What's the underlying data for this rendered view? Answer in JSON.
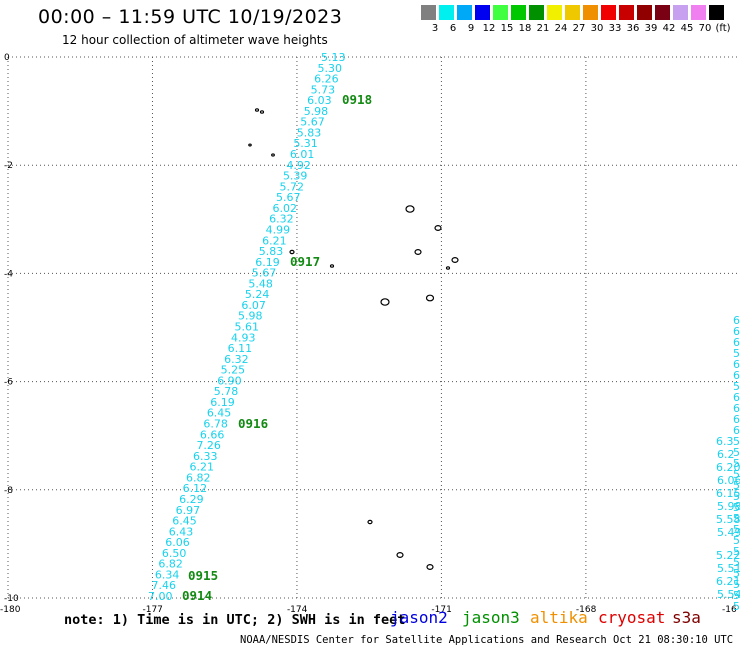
{
  "header": {
    "title": "00:00 – 11:59 UTC 10/19/2023",
    "subtitle": "12 hour collection of altimeter wave heights"
  },
  "legend": {
    "colors": [
      "#808080",
      "#00f0f0",
      "#00a8f8",
      "#0000f0",
      "#40ff40",
      "#00c800",
      "#009000",
      "#f0f000",
      "#f0c800",
      "#f09000",
      "#f00000",
      "#c80000",
      "#900000",
      "#7a0014",
      "#c8a0f0",
      "#f080f0",
      "#000000"
    ],
    "labels": [
      "3",
      "6",
      "9",
      "12",
      "15",
      "18",
      "21",
      "24",
      "27",
      "30",
      "33",
      "36",
      "39",
      "42",
      "45",
      "70",
      "(ft)"
    ]
  },
  "axes": {
    "x_ticks": [
      "-180",
      "-177",
      "-174",
      "-171",
      "-168",
      "-16"
    ],
    "y_ticks": [
      "0",
      "-2",
      "-4",
      "-6",
      "-8",
      "-10"
    ],
    "x_range": [
      -180,
      -164.8
    ],
    "y_range": [
      -10,
      0
    ]
  },
  "tracks": {
    "main_values": [
      "5.13",
      "5.30",
      "6.26",
      "5.73",
      "6.03",
      "5.98",
      "5.67",
      "5.83",
      "5.31",
      "6.01",
      "4.92",
      "5.39",
      "5.72",
      "5.67",
      "6.02",
      "6.32",
      "4.99",
      "6.21",
      "5.83",
      "6.19",
      "5.67",
      "5.48",
      "5.24",
      "6.07",
      "5.98",
      "5.61",
      "4.93",
      "6.11",
      "6.32",
      "5.25",
      "6.90",
      "5.78",
      "6.19",
      "6.45",
      "6.78",
      "6.66",
      "7.26",
      "6.33",
      "6.21",
      "6.82",
      "6.12",
      "6.29",
      "6.97",
      "6.45",
      "6.43",
      "6.06",
      "6.50",
      "6.82",
      "6.34",
      "7.46",
      "7.00"
    ],
    "right_values": [
      "6",
      "6",
      "6",
      "5",
      "6",
      "6",
      "5",
      "6",
      "6",
      "6",
      "6",
      "5",
      "5",
      "5",
      "5",
      "5",
      "5",
      "5",
      "5",
      "5",
      "5",
      "5",
      "5",
      "5",
      "5",
      "5",
      "5"
    ],
    "right_values_far": [
      "6.3",
      "6.2",
      "6.20",
      "6.06",
      "6.15",
      "5.98",
      "5.58",
      "5.49",
      "5.22",
      "5.51",
      "6.21",
      "5.54"
    ]
  },
  "passes": [
    {
      "label": "0918"
    },
    {
      "label": "0917"
    },
    {
      "label": "0916"
    },
    {
      "label": "0915"
    },
    {
      "label": "0914"
    }
  ],
  "footer": {
    "note": "note: 1) Time is in UTC; 2) SWH is in feet",
    "satellites": [
      {
        "name": "jason2",
        "color": "#0000e0"
      },
      {
        "name": "jason3",
        "color": "#009000"
      },
      {
        "name": "altika",
        "color": "#f09000"
      },
      {
        "name": "cryosat",
        "color": "#e00000"
      },
      {
        "name": "s3a",
        "color": "#800000"
      }
    ],
    "credit": "NOAA/NESDIS Center for Satellite Applications and Research   Oct 21 08:30:10 UTC 2023"
  }
}
